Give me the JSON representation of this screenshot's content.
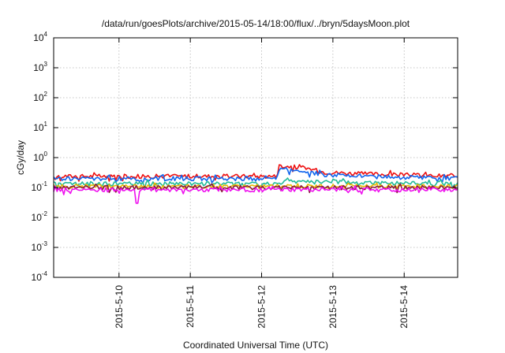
{
  "chart_data": {
    "type": "line",
    "title": "/data/run/goesPlots/archive/2015-05-14/18:00/flux/../bryn/5daysMoon.plot",
    "xlabel": "Coordinated Universal Time (UTC)",
    "ylabel": "cGy/day",
    "yscale": "log",
    "ylim": [
      0.0001,
      10000
    ],
    "xlim": [
      "2015-05-09 02:00",
      "2015-05-14 18:00"
    ],
    "x_ticks": [
      "2015-5-10",
      "2015-5-11",
      "2015-5-12",
      "2015-5-13",
      "2015-5-14"
    ],
    "y_ticks": [
      {
        "base": "10",
        "exp": "-4",
        "value": 0.0001
      },
      {
        "base": "10",
        "exp": "-3",
        "value": 0.001
      },
      {
        "base": "10",
        "exp": "-2",
        "value": 0.01
      },
      {
        "base": "10",
        "exp": "-1",
        "value": 0.1
      },
      {
        "base": "10",
        "exp": "0",
        "value": 1
      },
      {
        "base": "10",
        "exp": "1",
        "value": 10
      },
      {
        "base": "10",
        "exp": "2",
        "value": 100
      },
      {
        "base": "10",
        "exp": "3",
        "value": 1000
      },
      {
        "base": "10",
        "exp": "4",
        "value": 10000
      }
    ],
    "grid": true,
    "series": [
      {
        "color": "#ee1111",
        "segments": [
          [
            "2015-05-09 02:00",
            0.24
          ],
          [
            "2015-05-12 05:00",
            0.24
          ],
          [
            "2015-05-12 06:00",
            0.55
          ],
          [
            "2015-05-12 15:00",
            0.45
          ],
          [
            "2015-05-12 21:00",
            0.33
          ],
          [
            "2015-05-13 10:00",
            0.29
          ],
          [
            "2015-05-14 18:00",
            0.24
          ]
        ]
      },
      {
        "color": "#1166ee",
        "segments": [
          [
            "2015-05-09 02:00",
            0.2
          ],
          [
            "2015-05-12 05:00",
            0.2
          ],
          [
            "2015-05-12 06:00",
            0.42
          ],
          [
            "2015-05-12 15:00",
            0.35
          ],
          [
            "2015-05-12 21:00",
            0.27
          ],
          [
            "2015-05-13 10:00",
            0.24
          ],
          [
            "2015-05-14 18:00",
            0.2
          ]
        ]
      },
      {
        "color": "#22bb99",
        "segments": [
          [
            "2015-05-09 02:00",
            0.135
          ],
          [
            "2015-05-12 05:00",
            0.135
          ],
          [
            "2015-05-12 08:00",
            0.16
          ],
          [
            "2015-05-13 12:00",
            0.145
          ],
          [
            "2015-05-14 18:00",
            0.135
          ]
        ]
      },
      {
        "color": "#e8b800",
        "segments": [
          [
            "2015-05-09 02:00",
            0.11
          ],
          [
            "2015-05-14 18:00",
            0.11
          ]
        ]
      },
      {
        "color": "#8b1a3a",
        "segments": [
          [
            "2015-05-09 02:00",
            0.1
          ],
          [
            "2015-05-14 18:00",
            0.1
          ]
        ]
      },
      {
        "color": "#ee11ee",
        "segments": [
          [
            "2015-05-09 02:00",
            0.085
          ],
          [
            "2015-05-14 18:00",
            0.085
          ]
        ],
        "dip": [
          "2015-05-10 06:00",
          0.03
        ]
      }
    ]
  }
}
